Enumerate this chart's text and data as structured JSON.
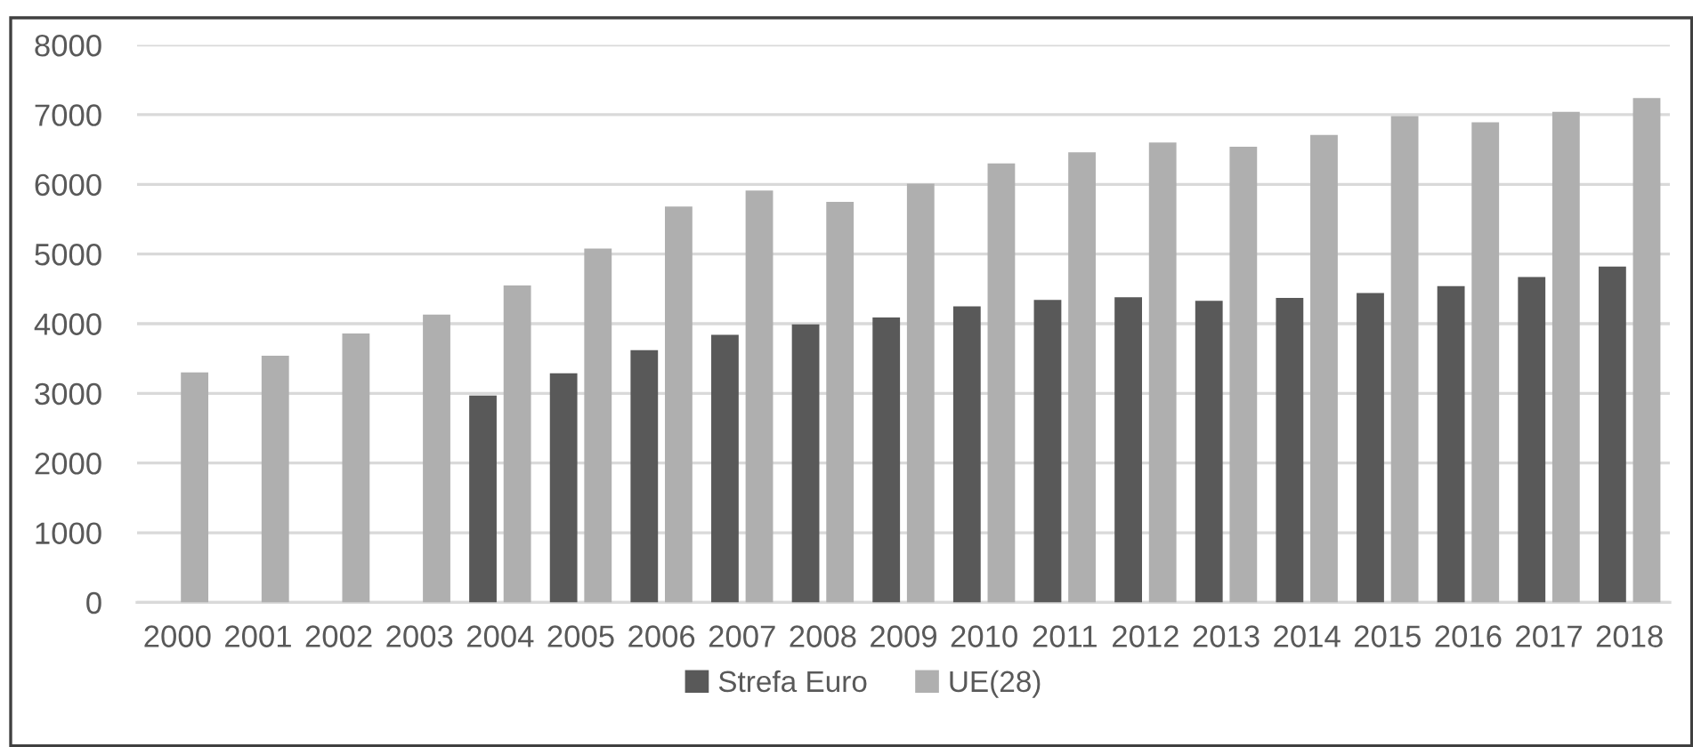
{
  "chart_data": {
    "type": "bar",
    "categories": [
      "2000",
      "2001",
      "2002",
      "2003",
      "2004",
      "2005",
      "2006",
      "2007",
      "2008",
      "2009",
      "2010",
      "2011",
      "2012",
      "2013",
      "2014",
      "2015",
      "2016",
      "2017",
      "2018"
    ],
    "series": [
      {
        "name": "Strefa Euro",
        "color": "#595959",
        "values": [
          null,
          null,
          null,
          null,
          2970,
          3290,
          3620,
          3840,
          3990,
          4090,
          4250,
          4340,
          4380,
          4330,
          4370,
          4440,
          4540,
          4670,
          4820
        ]
      },
      {
        "name": "UE(28)",
        "color": "#afafaf",
        "values": [
          3300,
          3540,
          3860,
          4130,
          4550,
          5080,
          5680,
          5910,
          5750,
          6010,
          6300,
          6460,
          6600,
          6540,
          6710,
          6980,
          6890,
          7040,
          7240
        ]
      }
    ],
    "ylim": [
      0,
      8000
    ],
    "yticks": [
      0,
      1000,
      2000,
      3000,
      4000,
      5000,
      6000,
      7000,
      8000
    ],
    "grid": "y",
    "legend": "bottom"
  }
}
